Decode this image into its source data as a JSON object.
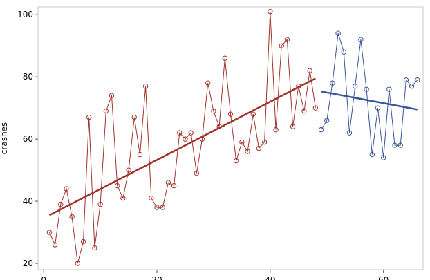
{
  "chart_data": {
    "type": "line",
    "title": "",
    "xlabel": "",
    "ylabel": "crashes",
    "xlim": [
      -1,
      67
    ],
    "ylim": [
      18,
      102.5
    ],
    "x_ticks": [
      0,
      20,
      40,
      60
    ],
    "y_ticks": [
      20,
      40,
      60,
      80,
      100
    ],
    "grid": false,
    "legend": "none",
    "series": [
      {
        "color": "#a0322b",
        "marker": "open-circle",
        "x": [
          1,
          2,
          3,
          4,
          5,
          6,
          7,
          8,
          9,
          10,
          11,
          12,
          13,
          14,
          15,
          16,
          17,
          18,
          19,
          20,
          21,
          22,
          23,
          24,
          25,
          26,
          27,
          28,
          29,
          30,
          31,
          32,
          33,
          34,
          35,
          36,
          37,
          38,
          39,
          40,
          41,
          42,
          43,
          44,
          45,
          46,
          47,
          48
        ],
        "values": [
          30,
          26,
          39,
          44,
          35,
          20,
          27,
          67,
          25,
          39,
          69,
          74,
          45,
          41,
          50,
          67,
          55,
          77,
          41,
          38,
          38,
          46,
          45,
          62,
          60,
          62,
          49,
          60,
          78,
          69,
          64,
          86,
          68,
          53,
          59,
          56,
          68,
          57,
          59,
          101,
          63,
          90,
          92,
          64,
          77,
          69,
          82,
          70
        ]
      },
      {
        "color": "#3a5598",
        "marker": "open-circle",
        "x": [
          49,
          50,
          51,
          52,
          53,
          54,
          55,
          56,
          57,
          58,
          59,
          60,
          61,
          62,
          63,
          64,
          65,
          66
        ],
        "values": [
          63,
          66,
          78,
          94,
          88,
          62,
          77,
          92,
          76,
          55,
          70,
          54,
          76,
          58,
          58,
          79,
          77,
          79
        ]
      }
    ],
    "trend_lines": [
      {
        "color": "#a0322b",
        "x": [
          1,
          48
        ],
        "values": [
          35.5,
          79.5
        ]
      },
      {
        "color": "#3a5598",
        "x": [
          49,
          66
        ],
        "values": [
          75.3,
          69.5
        ]
      }
    ]
  }
}
